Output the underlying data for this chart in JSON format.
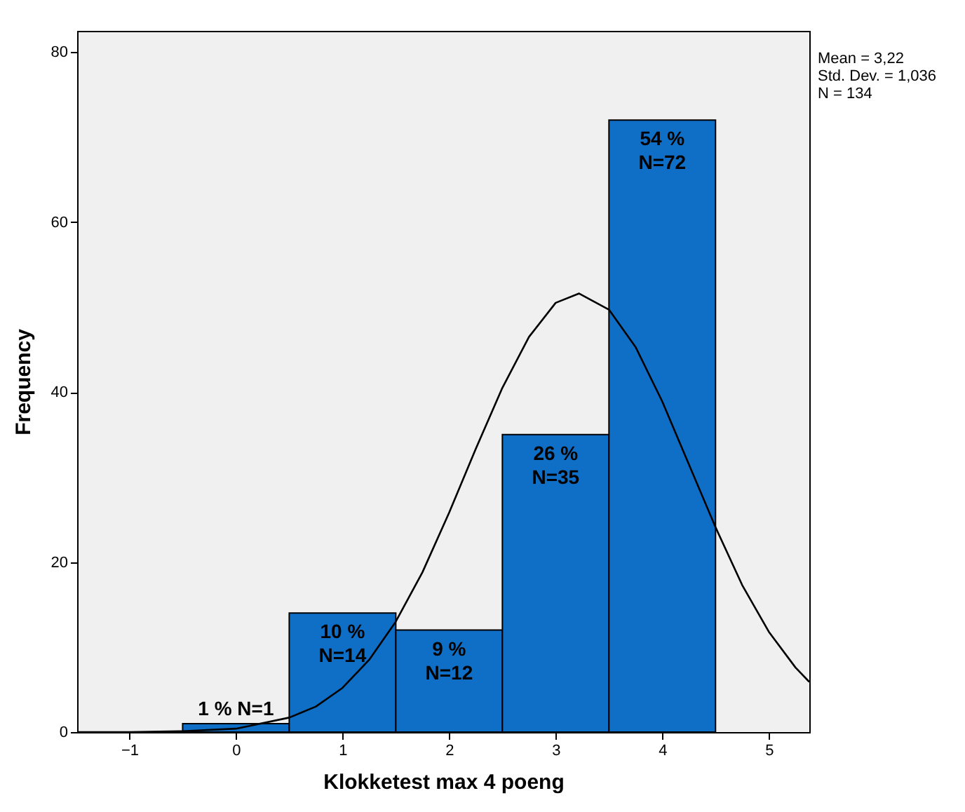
{
  "chart_data": {
    "type": "histogram",
    "xlabel": "Klokketest max 4 poeng",
    "ylabel": "Frequency",
    "annotations": [
      "Mean = 3,22",
      "Std. Dev. = 1,036",
      "N = 134"
    ],
    "xlim": [
      -1.49,
      5.38
    ],
    "ylim": [
      0,
      82.5
    ],
    "xticks": [
      -1,
      0,
      1,
      2,
      3,
      4,
      5
    ],
    "yticks": [
      0,
      20,
      40,
      60,
      80
    ],
    "grid": false,
    "series": [
      {
        "color": "#0f6fc6",
        "bins": [
          -0.5,
          0.5,
          1.5,
          2.5,
          3.5,
          4.5
        ],
        "values": [
          1,
          14,
          12,
          35,
          72
        ],
        "value_labels": [
          "1 % N=1",
          "10 %\nN=14",
          "9 %\nN=12",
          "26 %\nN=35",
          "54 %\nN=72"
        ]
      },
      {
        "type": "line",
        "color": "#000000",
        "x": [
          -1.49,
          -1,
          -0.5,
          0,
          0.5,
          0.75,
          1,
          1.25,
          1.5,
          1.75,
          2,
          2.25,
          2.5,
          2.75,
          3,
          3.22,
          3.5,
          3.75,
          4,
          4.25,
          4.5,
          4.75,
          5,
          5.25,
          5.38
        ],
        "values": [
          0,
          0,
          0.1,
          0.4,
          1.7,
          3,
          5.2,
          8.5,
          13,
          18.8,
          25.8,
          33.3,
          40.5,
          46.5,
          50.5,
          51.6,
          49.7,
          45.3,
          38.9,
          31.5,
          24.1,
          17.3,
          11.8,
          7.6,
          5.9
        ]
      }
    ]
  }
}
